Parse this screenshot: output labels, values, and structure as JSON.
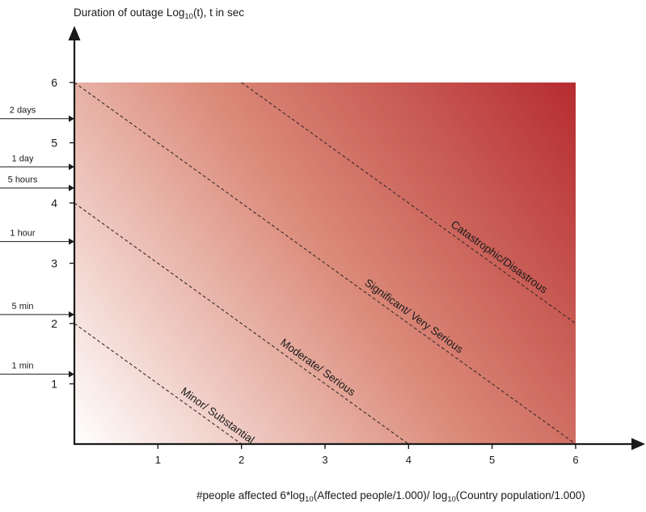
{
  "axes": {
    "y_title": {
      "pre": "Duration of outage Log",
      "sub": "10",
      "post": "(t), t in sec"
    },
    "x_title": {
      "part1": "#people affected 6*log",
      "sub1": "10",
      "part2": "(Affected people/1.000)/ log",
      "sub2": "10",
      "part3": "(Country population/1.000)"
    },
    "x_ticks": [
      "1",
      "2",
      "3",
      "4",
      "5",
      "6"
    ],
    "y_ticks": [
      "1",
      "2",
      "3",
      "4",
      "5",
      "6"
    ],
    "x_range": [
      0,
      6
    ],
    "y_range": [
      0,
      6
    ]
  },
  "time_markers": [
    {
      "label": "1 min",
      "y": 1.16
    },
    {
      "label": "5 min",
      "y": 2.15
    },
    {
      "label": "1 hour",
      "y": 3.36
    },
    {
      "label": "5 hours",
      "y": 4.25
    },
    {
      "label": "1 day",
      "y": 4.6
    },
    {
      "label": "2 days",
      "y": 5.4
    }
  ],
  "severity_boundaries": [
    {
      "label": "Minor/ Substantial",
      "intercept": 2
    },
    {
      "label": "Moderate/ Serious",
      "intercept": 4
    },
    {
      "label": "Significant/ Very Serious",
      "intercept": 6
    },
    {
      "label": "Catastrophic/Disastrous",
      "intercept": 8
    }
  ],
  "colors": {
    "gradient_low": "#ffffff",
    "gradient_mid": "#dc8d7c",
    "gradient_high": "#b62c30",
    "axis": "#1a1a1a",
    "dash": "#3a2a2a"
  }
}
